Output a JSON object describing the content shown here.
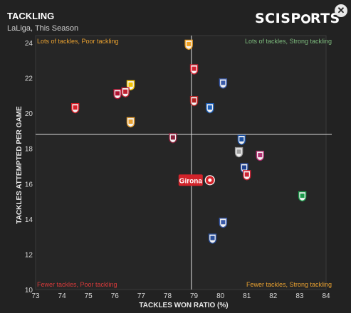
{
  "header": {
    "title": "TACKLING",
    "subtitle": "LaLiga, This Season",
    "brand_prefix": "SCISP",
    "brand_suffix": "RTS",
    "close_label": "✕"
  },
  "chart_data": {
    "type": "scatter",
    "xlabel": "TACKLES WON RATIO (%)",
    "ylabel": "TACKLES ATTEMPTED PER GAME",
    "xlim": [
      73,
      84
    ],
    "ylim": [
      10,
      24.4
    ],
    "x_ticks": [
      73,
      74,
      75,
      76,
      77,
      78,
      79,
      80,
      81,
      82,
      83,
      84
    ],
    "y_ticks": [
      10,
      12,
      14,
      16,
      18,
      20,
      22,
      24
    ],
    "reference_lines": {
      "x": 78.9,
      "y": 18.8
    },
    "quadrants": {
      "top_left": "Lots of tackles, Poor tackling",
      "top_right": "Lots of tackles, Strong tackling",
      "bottom_left": "Fewer tackles, Poor tackling",
      "bottom_right": "Fewer tackles, Strong tackling"
    },
    "highlight": {
      "label": "Girona",
      "x": 79.6,
      "y": 16.2,
      "color": "#d2232a"
    },
    "points": [
      {
        "x": 78.8,
        "y": 23.9,
        "color": "#f0a020"
      },
      {
        "x": 79.0,
        "y": 22.5,
        "color": "#d32030"
      },
      {
        "x": 80.1,
        "y": 21.7,
        "color": "#3a5aa8"
      },
      {
        "x": 76.6,
        "y": 21.6,
        "color": "#f2c200"
      },
      {
        "x": 76.4,
        "y": 21.2,
        "color": "#c02030"
      },
      {
        "x": 76.1,
        "y": 21.1,
        "color": "#b01030"
      },
      {
        "x": 79.0,
        "y": 20.7,
        "color": "#b02020"
      },
      {
        "x": 74.5,
        "y": 20.3,
        "color": "#d81e28"
      },
      {
        "x": 79.6,
        "y": 20.3,
        "color": "#1c5fb8"
      },
      {
        "x": 76.6,
        "y": 19.5,
        "color": "#e8a030"
      },
      {
        "x": 78.2,
        "y": 18.6,
        "color": "#8a1f3a"
      },
      {
        "x": 80.8,
        "y": 18.5,
        "color": "#1a4fa0"
      },
      {
        "x": 80.7,
        "y": 17.8,
        "color": "#a0a0a0"
      },
      {
        "x": 81.5,
        "y": 17.6,
        "color": "#b03070"
      },
      {
        "x": 80.9,
        "y": 16.9,
        "color": "#1c3f90"
      },
      {
        "x": 81.0,
        "y": 16.5,
        "color": "#cc2233"
      },
      {
        "x": 83.1,
        "y": 15.3,
        "color": "#1a9a4a"
      },
      {
        "x": 80.1,
        "y": 13.8,
        "color": "#3a5aa8"
      },
      {
        "x": 79.7,
        "y": 12.9,
        "color": "#2a4f9a"
      }
    ]
  }
}
